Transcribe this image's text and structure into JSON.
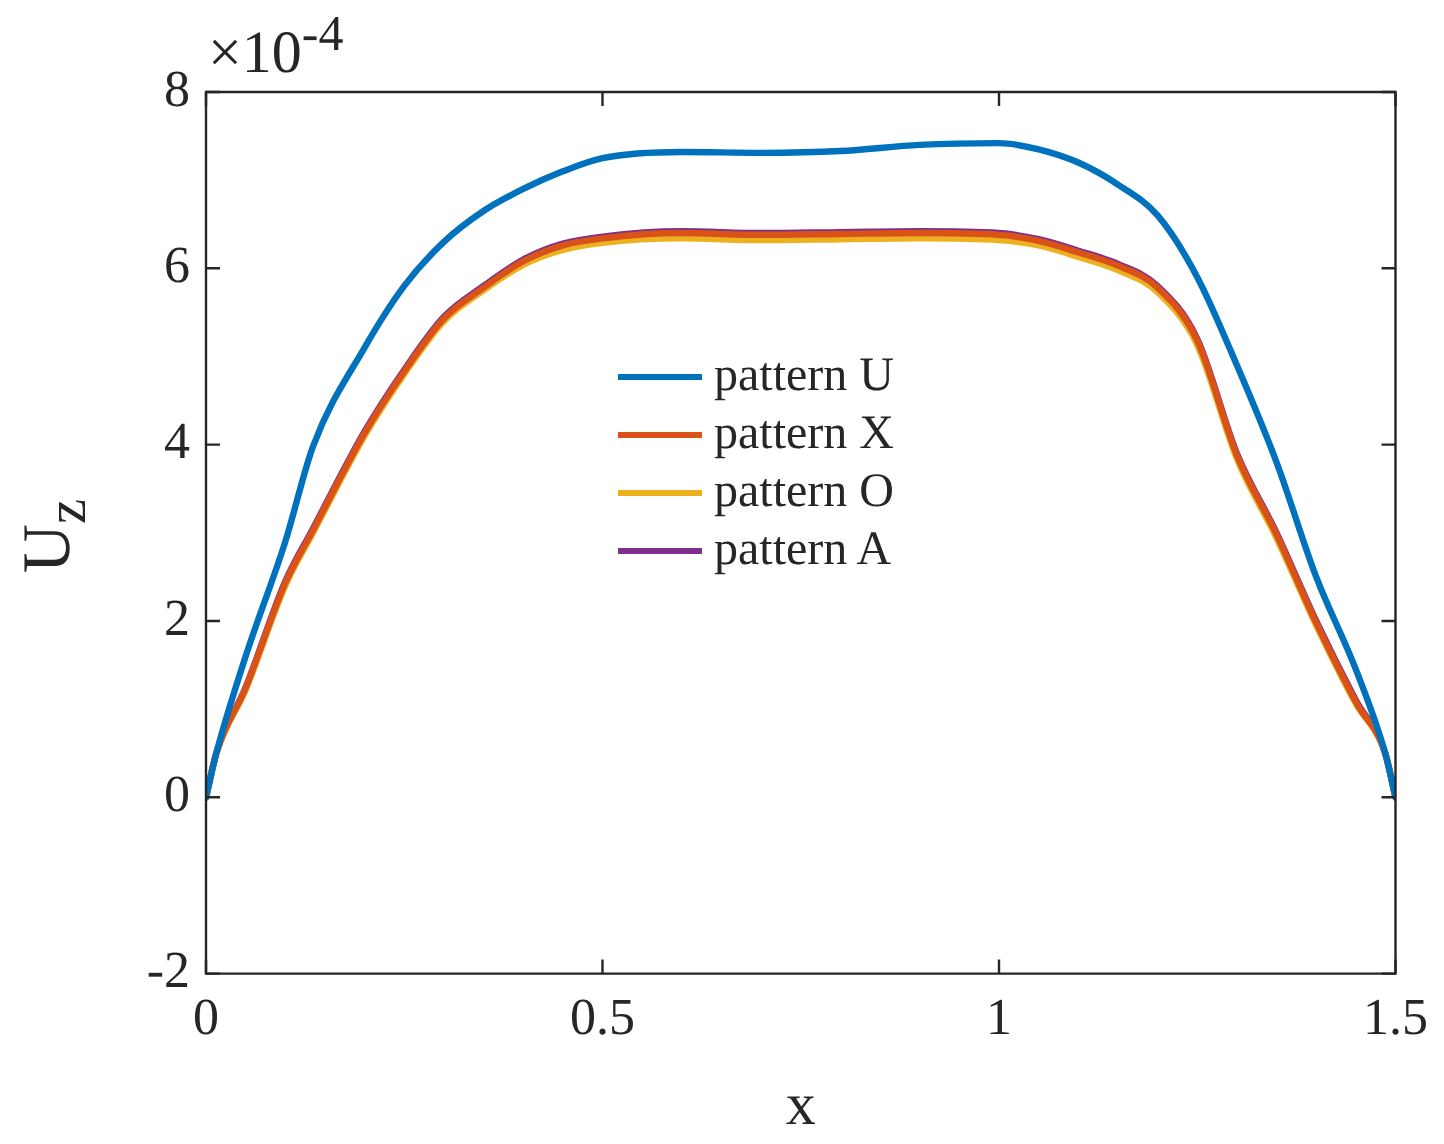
{
  "chart_data": {
    "type": "line",
    "xlabel": "x",
    "ylabel": "U$_{z}$",
    "annotations": [
      "×10$^{-4}$"
    ],
    "x": [
      0,
      0.013,
      0.05,
      0.1,
      0.135,
      0.2,
      0.25,
      0.3,
      0.35,
      0.4,
      0.45,
      0.5,
      0.6,
      0.7,
      0.8,
      0.9,
      1.0,
      1.05,
      1.1,
      1.15,
      1.2,
      1.25,
      1.3,
      1.35,
      1.4,
      1.45,
      1.487,
      1.5
    ],
    "xlim": [
      0,
      1.5
    ],
    "xticks": [
      0,
      0.5,
      1,
      1.5
    ],
    "ylim": [
      -2,
      8
    ],
    "yticks": [
      -2,
      0,
      2,
      4,
      6,
      8
    ],
    "grid": false,
    "legend": "center",
    "marker": "none",
    "line_style": "solid",
    "series": [
      {
        "name": "pattern U",
        "color": "#0072bd",
        "values": [
          0,
          0.5,
          1.6,
          2.9,
          3.98,
          5.1,
          5.8,
          6.3,
          6.65,
          6.9,
          7.1,
          7.25,
          7.32,
          7.31,
          7.33,
          7.4,
          7.42,
          7.35,
          7.2,
          6.95,
          6.6,
          5.9,
          4.9,
          3.8,
          2.5,
          1.45,
          0.5,
          0
        ]
      },
      {
        "name": "pattern X",
        "color": "#d95319",
        "values": [
          0,
          0.5,
          1.24,
          2.43,
          3.03,
          4.13,
          4.83,
          5.43,
          5.78,
          6.08,
          6.26,
          6.34,
          6.4,
          6.38,
          6.39,
          6.4,
          6.38,
          6.31,
          6.18,
          6.03,
          5.78,
          5.18,
          3.88,
          2.98,
          1.98,
          1.08,
          0.5,
          0
        ]
      },
      {
        "name": "pattern O",
        "color": "#edb120",
        "values": [
          0,
          0.5,
          1.22,
          2.4,
          3.0,
          4.1,
          4.8,
          5.4,
          5.75,
          6.04,
          6.21,
          6.29,
          6.34,
          6.32,
          6.33,
          6.34,
          6.32,
          6.26,
          6.13,
          5.98,
          5.73,
          5.13,
          3.84,
          2.94,
          1.95,
          1.06,
          0.5,
          0
        ]
      },
      {
        "name": "pattern A",
        "color": "#7e2f8e",
        "values": [
          0,
          0.5,
          1.25,
          2.45,
          3.05,
          4.15,
          4.85,
          5.45,
          5.8,
          6.1,
          6.28,
          6.36,
          6.42,
          6.4,
          6.41,
          6.42,
          6.4,
          6.33,
          6.2,
          6.05,
          5.8,
          5.2,
          3.9,
          3.0,
          2.0,
          1.1,
          0.5,
          0
        ]
      }
    ]
  }
}
